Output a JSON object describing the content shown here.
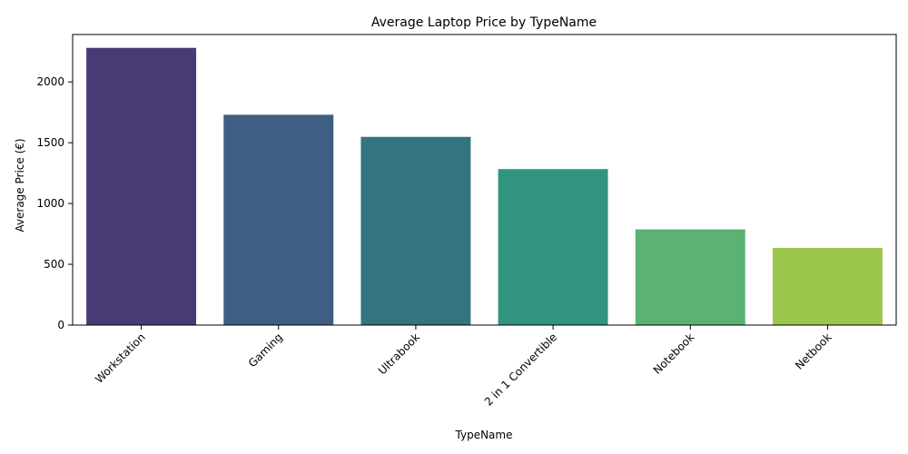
{
  "chart_data": {
    "type": "bar",
    "title": "Average Laptop Price by TypeName",
    "xlabel": "TypeName",
    "ylabel": "Average Price (€)",
    "categories": [
      "Workstation",
      "Gaming",
      "Ultrabook",
      "2 in 1 Convertible",
      "Notebook",
      "Netbook"
    ],
    "values": [
      2280,
      1730,
      1548,
      1283,
      787,
      635
    ],
    "colors": [
      "#483a75",
      "#3f5e84",
      "#33747e",
      "#309480",
      "#5ab273",
      "#9bc64b"
    ],
    "ylim": [
      0,
      2390
    ],
    "yticks": [
      0,
      500,
      1000,
      1500,
      2000
    ],
    "grid": false,
    "legend": "none"
  }
}
